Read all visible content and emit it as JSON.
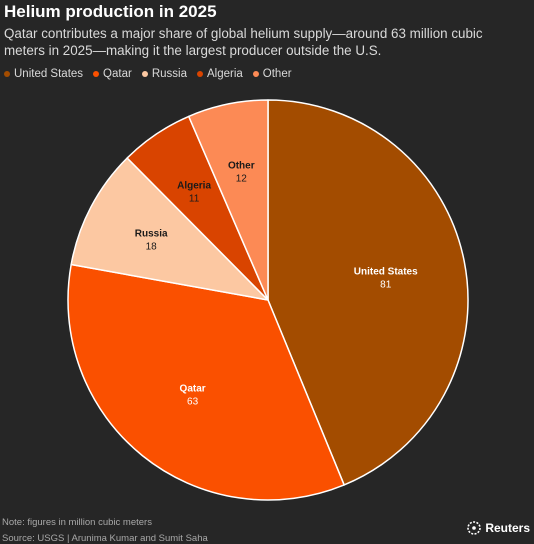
{
  "header": {
    "title": "Helium production in 2025",
    "subtitle": "Qatar contributes a major share of global helium supply—around 63 million cubic meters in 2025—making it the largest producer outside the U.S."
  },
  "footer": {
    "note": "Note: figures in million cubic meters",
    "source": "Source: USGS | Arunima Kumar and Sumit Saha",
    "brand": "Reuters"
  },
  "chart_data": {
    "type": "pie",
    "title": "Helium production in 2025",
    "unit": "million cubic meters",
    "legend_placement": "top-left",
    "start_angle_deg": 0,
    "direction": "clockwise",
    "slices": [
      {
        "name": "United States",
        "value": 81,
        "color": "#a34c00",
        "label_color": "#ffffff"
      },
      {
        "name": "Qatar",
        "value": 63,
        "color": "#fa5000",
        "label_color": "#ffffff"
      },
      {
        "name": "Russia",
        "value": 18,
        "color": "#fcc8a2",
        "label_color": "#1a1a1a"
      },
      {
        "name": "Algeria",
        "value": 11,
        "color": "#d94400",
        "label_color": "#1a1a1a"
      },
      {
        "name": "Other",
        "value": 12,
        "color": "#fc8a55",
        "label_color": "#1a1a1a"
      }
    ]
  }
}
